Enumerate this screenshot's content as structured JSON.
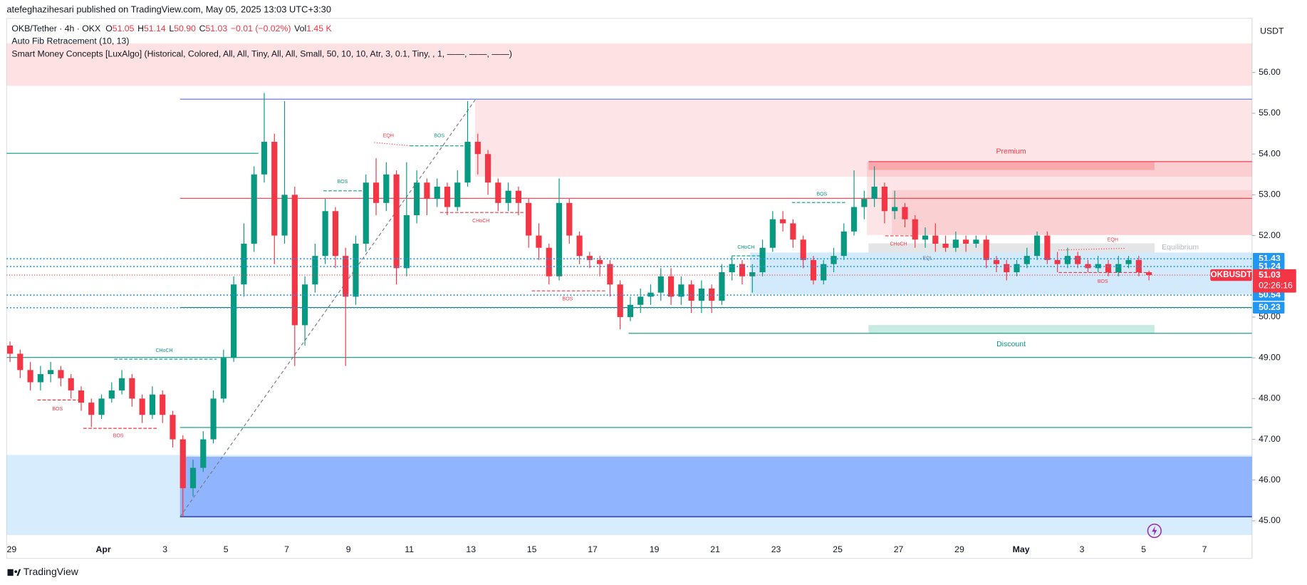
{
  "header": {
    "publisher": "atefeghazihesari published on TradingView.com, May 05, 2025 13:03 UTC+3:30",
    "symbol": "OKB/Tether · 4h · OKX",
    "fields": [
      [
        "O",
        "51.05"
      ],
      [
        "H",
        "51.14"
      ],
      [
        "L",
        "50.90"
      ],
      [
        "C",
        "51.03"
      ]
    ],
    "change": "−0.01 (−0.02%)",
    "volume_label": "Vol",
    "volume": "1.45 K",
    "indicators": [
      "Auto Fib Retracement (10, 13)",
      "Smart Money Concepts [LuxAlgo] (Historical, Colored, All, All, Tiny, All, All, Small, 50, 10, 10, Atr, 3, 0.1, Tiny, , 1, ——, ——, ——)"
    ]
  },
  "chart_data": {
    "type": "candlestick",
    "currency": "USDT",
    "up_color": "#089981",
    "down_color": "#f23645",
    "open": [
      49.3,
      49.1,
      48.7,
      48.4,
      48.6,
      48.7,
      48.5,
      48.2,
      47.9,
      47.6,
      48.0,
      48.2,
      48.5,
      48.0,
      47.6,
      48.1,
      47.6,
      47.0,
      45.8,
      46.3,
      47.0,
      48.0,
      49.0,
      50.8,
      51.8,
      53.5,
      54.3,
      52.0,
      53.0,
      49.8,
      50.8,
      51.5,
      52.6,
      51.5,
      50.5,
      51.8,
      53.3,
      52.8,
      53.5,
      51.2,
      52.5,
      53.3,
      52.9,
      53.2,
      52.7,
      53.3,
      54.3,
      54.0,
      53.3,
      52.8,
      53.1,
      52.8,
      52.0,
      51.7,
      51.0,
      52.8,
      52.0,
      51.5,
      51.4,
      51.3,
      50.8,
      50.0,
      50.3,
      50.5,
      50.6,
      51.0,
      50.5,
      50.8,
      50.4,
      50.7,
      50.4,
      51.1,
      51.3,
      51.0,
      51.1,
      51.7,
      52.4,
      52.3,
      51.9,
      51.4,
      50.9,
      51.3,
      51.5,
      52.1,
      52.7,
      52.9,
      53.2,
      52.6,
      52.7,
      52.4,
      51.9,
      52.0,
      51.8,
      51.7,
      51.9,
      51.8,
      51.9,
      51.4,
      51.3,
      51.1,
      51.3,
      51.5,
      52.0,
      51.4,
      51.3,
      51.5,
      51.3,
      51.2,
      51.3,
      51.1,
      51.3,
      51.4,
      51.1
    ],
    "high": [
      49.4,
      49.2,
      48.9,
      48.8,
      48.9,
      48.8,
      48.6,
      48.3,
      48.0,
      48.1,
      48.4,
      48.7,
      48.6,
      48.1,
      48.3,
      48.2,
      47.7,
      47.1,
      46.5,
      47.2,
      48.2,
      49.2,
      51.0,
      52.3,
      53.7,
      55.5,
      54.5,
      55.3,
      53.2,
      51.0,
      51.8,
      52.9,
      52.7,
      51.7,
      52.0,
      53.5,
      53.9,
      53.8,
      53.6,
      53.8,
      53.6,
      53.4,
      53.4,
      53.3,
      53.6,
      55.3,
      54.5,
      54.1,
      53.4,
      53.3,
      53.2,
      52.9,
      52.3,
      51.8,
      53.4,
      52.9,
      52.1,
      51.6,
      51.5,
      51.4,
      50.9,
      50.5,
      50.7,
      50.8,
      51.2,
      51.2,
      51.0,
      50.9,
      50.9,
      50.8,
      51.3,
      51.5,
      51.4,
      51.3,
      51.9,
      52.6,
      52.6,
      52.4,
      52.0,
      51.5,
      51.4,
      51.7,
      52.3,
      53.6,
      53.1,
      53.7,
      53.3,
      53.1,
      52.8,
      52.5,
      52.2,
      52.3,
      52.0,
      52.1,
      52.0,
      52.0,
      52.0,
      51.5,
      51.4,
      51.4,
      51.7,
      52.1,
      52.1,
      51.6,
      51.7,
      51.6,
      51.4,
      51.5,
      51.4,
      51.5,
      51.5,
      51.5,
      51.14
    ],
    "low": [
      48.9,
      48.5,
      48.2,
      48.2,
      48.4,
      48.3,
      48.0,
      47.7,
      47.3,
      47.5,
      47.9,
      48.1,
      47.8,
      47.4,
      47.5,
      47.4,
      46.8,
      45.1,
      45.6,
      46.2,
      46.9,
      47.9,
      48.9,
      50.5,
      51.6,
      53.3,
      51.3,
      51.8,
      48.8,
      49.3,
      50.6,
      51.3,
      51.2,
      48.8,
      50.3,
      51.6,
      52.5,
      52.6,
      50.8,
      51.0,
      52.3,
      52.5,
      52.7,
      52.5,
      52.6,
      53.2,
      53.5,
      53.0,
      52.6,
      52.6,
      52.5,
      51.7,
      51.4,
      50.8,
      50.9,
      51.8,
      51.3,
      51.2,
      51.0,
      50.5,
      49.7,
      49.9,
      50.1,
      50.3,
      50.4,
      50.3,
      50.3,
      50.1,
      50.1,
      50.1,
      50.3,
      50.9,
      50.8,
      50.6,
      51.0,
      51.6,
      52.1,
      51.7,
      51.2,
      50.8,
      50.8,
      51.1,
      51.4,
      52.0,
      52.4,
      52.7,
      52.3,
      52.4,
      52.2,
      51.7,
      51.7,
      51.6,
      51.6,
      51.6,
      51.6,
      51.7,
      51.2,
      51.1,
      50.9,
      51.0,
      51.2,
      51.4,
      51.3,
      51.1,
      51.2,
      51.2,
      51.1,
      51.1,
      51.0,
      51.0,
      51.2,
      51.0,
      50.9
    ],
    "close": [
      49.1,
      48.7,
      48.4,
      48.6,
      48.7,
      48.5,
      48.2,
      47.9,
      47.6,
      48.0,
      48.2,
      48.5,
      48.0,
      47.6,
      48.1,
      47.6,
      47.0,
      45.8,
      46.3,
      47.0,
      48.0,
      49.0,
      50.8,
      51.8,
      53.5,
      54.3,
      52.0,
      53.0,
      49.8,
      50.8,
      51.5,
      52.6,
      51.5,
      50.5,
      51.8,
      53.3,
      52.8,
      53.5,
      51.2,
      52.5,
      53.3,
      52.9,
      53.2,
      52.7,
      53.3,
      54.3,
      54.0,
      53.3,
      52.8,
      53.1,
      52.8,
      52.0,
      51.7,
      51.0,
      52.8,
      52.0,
      51.5,
      51.4,
      51.3,
      50.8,
      50.0,
      50.3,
      50.5,
      50.6,
      51.0,
      50.5,
      50.8,
      50.4,
      50.7,
      50.4,
      51.1,
      51.3,
      51.0,
      51.1,
      51.7,
      52.4,
      52.3,
      51.9,
      51.4,
      50.9,
      51.3,
      51.5,
      52.1,
      52.7,
      52.9,
      53.2,
      52.6,
      52.7,
      52.4,
      51.9,
      52.0,
      51.8,
      51.7,
      51.9,
      51.8,
      51.9,
      51.4,
      51.3,
      51.1,
      51.3,
      51.5,
      52.0,
      51.4,
      51.3,
      51.5,
      51.3,
      51.2,
      51.3,
      51.1,
      51.3,
      51.4,
      51.1,
      51.03
    ],
    "ylim": [
      44.08,
      57.33
    ],
    "yticks": [
      {
        "value": 45,
        "label": "45.00"
      },
      {
        "value": 46,
        "label": "46.00"
      },
      {
        "value": 47,
        "label": "47.00"
      },
      {
        "value": 48,
        "label": "48.00"
      },
      {
        "value": 49,
        "label": "49.00"
      },
      {
        "value": 50,
        "label": "50.00"
      },
      {
        "value": 51,
        "label": "51.00"
      },
      {
        "value": 52,
        "label": "52.00"
      },
      {
        "value": 53,
        "label": "53.00"
      },
      {
        "value": 54,
        "label": "54.00"
      },
      {
        "value": 55,
        "label": "55.00"
      },
      {
        "value": 56,
        "label": "56.00"
      }
    ],
    "xlabels": [
      "29",
      "Apr",
      "3",
      "5",
      "7",
      "9",
      "11",
      "13",
      "15",
      "17",
      "19",
      "21",
      "23",
      "25",
      "27",
      "29",
      "May",
      "3",
      "5",
      "7"
    ],
    "price_badges": [
      {
        "value": 51.43,
        "label": "51.43",
        "color": "#2196f3"
      },
      {
        "value": 51.24,
        "label": "51.24",
        "color": "#2196f3"
      },
      {
        "value": 50.54,
        "label": "50.54",
        "color": "#2196f3"
      },
      {
        "value": 50.23,
        "label": "50.23",
        "color": "#2196f3"
      }
    ],
    "last_price": {
      "value": 51.03,
      "label": "51.03",
      "ticker": "OKBUSDT",
      "countdown": "02:26:16",
      "color": "#f23645"
    },
    "annotations": [
      "EQH",
      "BOS",
      "BOS",
      "CHoCH",
      "BOS",
      "CHoCH",
      "BOS",
      "BOS",
      "Premium",
      "BOS",
      "CHoCH",
      "CHoCH",
      "EQH",
      "Equilibrium",
      "BOS",
      "Discount",
      "EQL"
    ]
  },
  "footer": {
    "brand": "TradingView"
  }
}
